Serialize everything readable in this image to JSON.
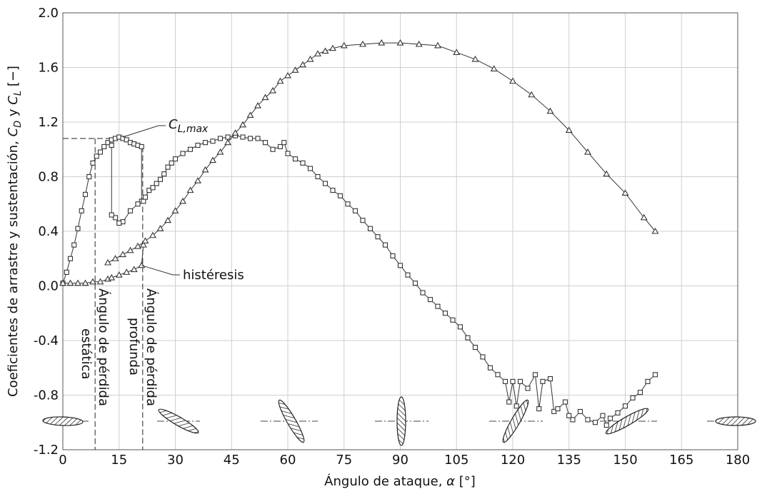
{
  "chart_data": {
    "type": "line",
    "x_label": [
      "Ángulo de ataque, ",
      "α",
      " [°]"
    ],
    "y_label": [
      "Coeficientes de arrastre y sustentación, ",
      "C",
      "D",
      " y ",
      "C",
      "L",
      " [−]"
    ],
    "xlim": [
      0,
      180
    ],
    "xticks": [
      0,
      15,
      30,
      45,
      60,
      75,
      90,
      105,
      120,
      135,
      150,
      165,
      180
    ],
    "ylim": [
      -1.2,
      2.0
    ],
    "yticks": [
      -1.2,
      -0.8,
      -0.4,
      {
        "value": 0,
        "label": "0.0"
      },
      0.4,
      0.8,
      1.2,
      1.6,
      {
        "value": 2,
        "label": "2.0"
      }
    ],
    "grid": true,
    "series": [
      {
        "marker": "square",
        "color": "#333333",
        "x": [
          0,
          1,
          2,
          3,
          4,
          5,
          6,
          7,
          8,
          9,
          10,
          11,
          12,
          13,
          14,
          15,
          16,
          17,
          18,
          19,
          20,
          21,
          21,
          20,
          18,
          16,
          15,
          14,
          13,
          13,
          13,
          21.5,
          22,
          23,
          24,
          25,
          26,
          27,
          28,
          29,
          30,
          32,
          34,
          36,
          38,
          40,
          42,
          44,
          46,
          48,
          50,
          52,
          54,
          56,
          58,
          59,
          60,
          62,
          64,
          66,
          68,
          70,
          72,
          74,
          76,
          78,
          80,
          82,
          84,
          86,
          88,
          90,
          92,
          94,
          96,
          98,
          100,
          102,
          104,
          106,
          108,
          110,
          112,
          114,
          116,
          118,
          119,
          120,
          121,
          122,
          124,
          126,
          127,
          128,
          130,
          131,
          132,
          134,
          135,
          136,
          138,
          140,
          142,
          144,
          145,
          146,
          148,
          150,
          152,
          154,
          156,
          158
        ],
        "values": [
          0.02,
          0.1,
          0.2,
          0.3,
          0.42,
          0.55,
          0.67,
          0.8,
          0.9,
          0.95,
          0.98,
          1.02,
          1.05,
          1.07,
          1.08,
          1.09,
          1.08,
          1.07,
          1.05,
          1.04,
          1.03,
          1.02,
          0.62,
          0.6,
          0.55,
          0.47,
          0.46,
          0.5,
          0.52,
          1.03,
          null,
          0.62,
          0.65,
          0.7,
          0.72,
          0.75,
          0.78,
          0.82,
          0.87,
          0.9,
          0.93,
          0.97,
          1.0,
          1.03,
          1.05,
          1.06,
          1.08,
          1.09,
          1.1,
          1.09,
          1.08,
          1.08,
          1.05,
          1.0,
          1.02,
          1.05,
          0.97,
          0.93,
          0.9,
          0.86,
          0.8,
          0.75,
          0.7,
          0.66,
          0.6,
          0.55,
          0.48,
          0.42,
          0.36,
          0.3,
          0.22,
          0.15,
          0.08,
          0.02,
          -0.05,
          -0.1,
          -0.15,
          -0.2,
          -0.25,
          -0.3,
          -0.38,
          -0.45,
          -0.52,
          -0.6,
          -0.65,
          -0.7,
          -0.85,
          -0.7,
          -0.88,
          -0.7,
          -0.75,
          -0.65,
          -0.9,
          -0.7,
          -0.68,
          -0.92,
          -0.9,
          -0.85,
          -0.95,
          -0.98,
          -0.92,
          -0.98,
          -1.0,
          -0.95,
          -1.02,
          -0.97,
          -0.93,
          -0.88,
          -0.82,
          -0.78,
          -0.7,
          -0.65
        ]
      },
      {
        "marker": "triangle",
        "color": "#333333",
        "x": [
          0,
          2,
          4,
          6,
          8,
          10,
          12,
          13,
          15,
          17,
          19,
          21,
          21.5,
          12,
          12,
          14,
          16,
          18,
          20,
          22,
          24,
          26,
          28,
          30,
          32,
          34,
          36,
          38,
          40,
          42,
          44,
          46,
          48,
          50,
          52,
          54,
          56,
          58,
          60,
          62,
          64,
          66,
          68,
          70,
          72,
          75,
          80,
          85,
          90,
          95,
          100,
          105,
          110,
          115,
          120,
          125,
          130,
          135,
          140,
          145,
          150,
          155,
          158
        ],
        "values": [
          0.02,
          0.02,
          0.02,
          0.02,
          0.03,
          0.03,
          0.05,
          0.06,
          0.08,
          0.1,
          0.12,
          0.15,
          0.3,
          null,
          0.17,
          0.2,
          0.23,
          0.26,
          0.29,
          0.33,
          0.37,
          0.42,
          0.48,
          0.55,
          0.62,
          0.7,
          0.77,
          0.85,
          0.92,
          0.98,
          1.05,
          1.12,
          1.18,
          1.25,
          1.32,
          1.38,
          1.43,
          1.5,
          1.54,
          1.58,
          1.62,
          1.66,
          1.7,
          1.72,
          1.74,
          1.76,
          1.77,
          1.78,
          1.78,
          1.77,
          1.76,
          1.71,
          1.66,
          1.59,
          1.5,
          1.4,
          1.28,
          1.14,
          0.98,
          0.82,
          0.68,
          0.5,
          0.4
        ]
      }
    ],
    "hline": {
      "y": 1.08,
      "x_end": 15
    },
    "vlines": [
      {
        "x": 8.6,
        "y_end": 1.08
      },
      {
        "x": 21.3,
        "y_end": 1.02
      }
    ],
    "annotations": {
      "cl_max": [
        "C",
        "L,max"
      ],
      "hysteresis": "histéresis",
      "static_stall": [
        "Ángulo de pérdida",
        "estática"
      ],
      "deep_stall": [
        "Ángulo de pérdida",
        "profunda"
      ]
    }
  }
}
